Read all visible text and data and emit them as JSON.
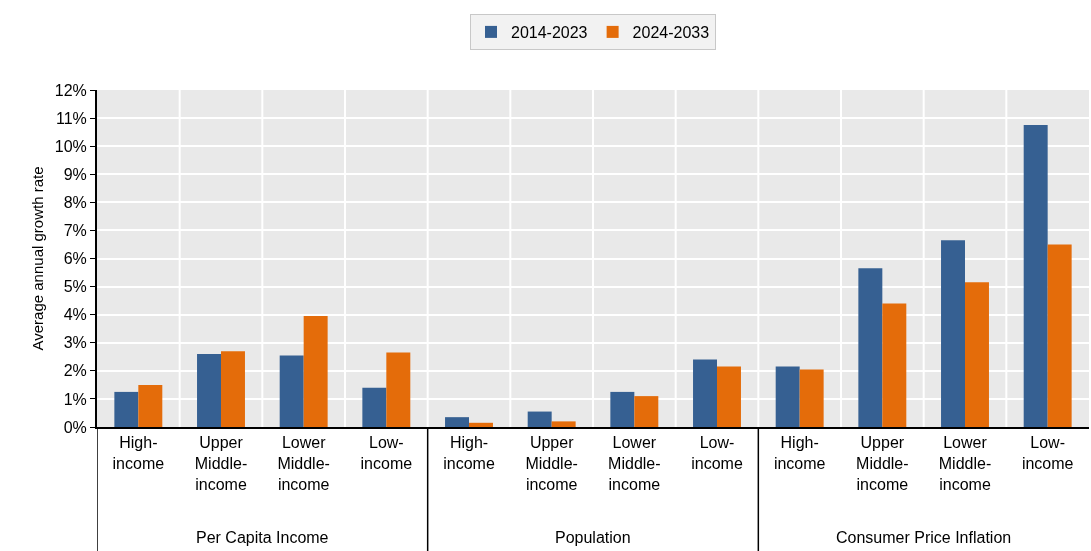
{
  "chart_data": {
    "type": "bar",
    "ylabel": "Average annual growth rate",
    "categories": [
      "High-income",
      "Upper Middle-income",
      "Lower Middle-income",
      "Low-income",
      "High-income",
      "Upper Middle-income",
      "Lower Middle-income",
      "Low-income",
      "High-income",
      "Upper Middle-income",
      "Lower Middle-income",
      "Low-income"
    ],
    "series": [
      {
        "name": "2014-2023",
        "color": "#366092",
        "values": [
          1.25,
          2.6,
          2.55,
          1.4,
          0.35,
          0.55,
          1.25,
          2.4,
          2.15,
          5.65,
          6.65,
          10.75
        ]
      },
      {
        "name": "2024-2033",
        "color": "#e46c0a",
        "values": [
          1.5,
          2.7,
          3.95,
          2.65,
          0.15,
          0.2,
          1.1,
          2.15,
          2.05,
          4.4,
          5.15,
          6.5
        ]
      }
    ],
    "annotations": [
      "Per Capita Income",
      "Population",
      "Consumer Price Inflation"
    ],
    "ylim": [
      0,
      12
    ],
    "yticks": [
      {
        "value": 0,
        "label": "0%"
      },
      {
        "value": 1,
        "label": "1%"
      },
      {
        "value": 2,
        "label": "2%"
      },
      {
        "value": 3,
        "label": "3%"
      },
      {
        "value": 4,
        "label": "4%"
      },
      {
        "value": 5,
        "label": "5%"
      },
      {
        "value": 6,
        "label": "6%"
      },
      {
        "value": 7,
        "label": "7%"
      },
      {
        "value": 8,
        "label": "8%"
      },
      {
        "value": 9,
        "label": "9%"
      },
      {
        "value": 10,
        "label": "10%"
      },
      {
        "value": 11,
        "label": "11%"
      },
      {
        "value": 12,
        "label": "12%"
      }
    ],
    "grid": true,
    "legend": "top"
  }
}
